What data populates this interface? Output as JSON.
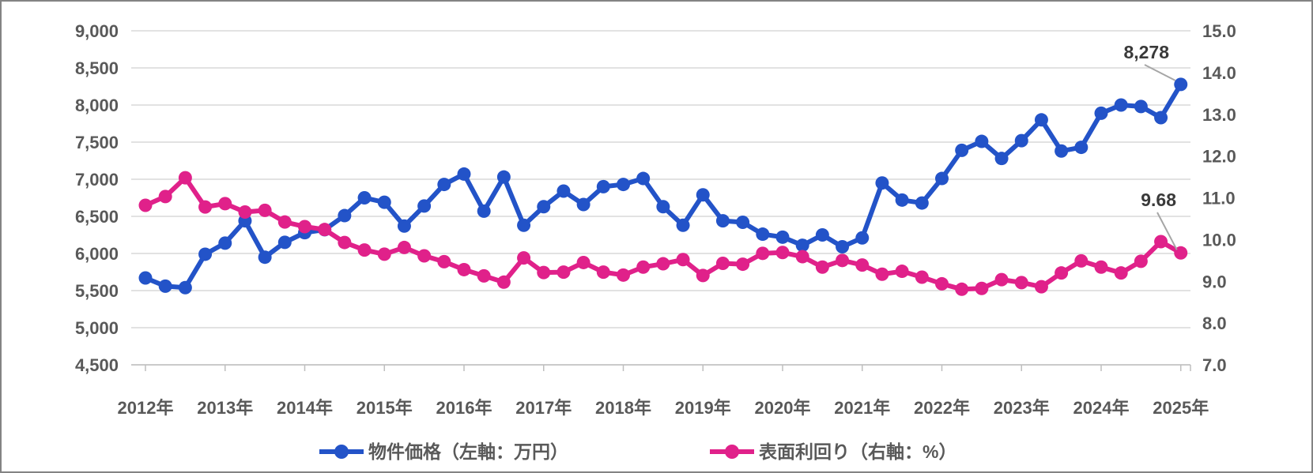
{
  "chart_data": {
    "type": "line",
    "title": "",
    "points_per_year": 4,
    "n_points": 53,
    "x_range_note": "quarterly 2012Q1 - 2025Q1",
    "x_axis_year_labels": [
      "2012年",
      "2013年",
      "2014年",
      "2015年",
      "2016年",
      "2017年",
      "2018年",
      "2019年",
      "2020年",
      "2021年",
      "2022年",
      "2023年",
      "2024年",
      "2025年"
    ],
    "series": [
      {
        "name": "物件価格（左軸：万円）",
        "axis": "left",
        "color": "#2353c8",
        "marker": "circle",
        "values": [
          5670,
          5560,
          5540,
          5990,
          6140,
          6440,
          5950,
          6150,
          6280,
          6320,
          6510,
          6750,
          6690,
          6370,
          6640,
          6930,
          7070,
          6570,
          7030,
          6380,
          6630,
          6840,
          6660,
          6900,
          6930,
          7010,
          6630,
          6380,
          6790,
          6440,
          6420,
          6260,
          6220,
          6110,
          6250,
          6090,
          6210,
          6950,
          6720,
          6680,
          7010,
          7390,
          7510,
          7280,
          7520,
          7800,
          7380,
          7430,
          7890,
          8000,
          7980,
          7830,
          8278
        ]
      },
      {
        "name": "表面利回り（右軸：%）",
        "axis": "right",
        "color": "#e0218a",
        "marker": "circle",
        "values": [
          10.82,
          11.03,
          11.48,
          10.78,
          10.86,
          10.66,
          10.7,
          10.42,
          10.31,
          10.24,
          9.93,
          9.75,
          9.65,
          9.81,
          9.61,
          9.47,
          9.28,
          9.13,
          8.98,
          9.56,
          9.21,
          9.22,
          9.45,
          9.22,
          9.15,
          9.34,
          9.42,
          9.52,
          9.14,
          9.43,
          9.41,
          9.67,
          9.69,
          9.59,
          9.34,
          9.5,
          9.39,
          9.17,
          9.24,
          9.1,
          8.94,
          8.81,
          8.83,
          9.04,
          8.97,
          8.87,
          9.2,
          9.49,
          9.34,
          9.2,
          9.48,
          9.95,
          9.68
        ]
      }
    ],
    "left_axis": {
      "min": 4500,
      "max": 9000,
      "step": 500,
      "tick_labels": [
        "9,000",
        "8,500",
        "8,000",
        "7,500",
        "7,000",
        "6,500",
        "6,000",
        "5,500",
        "5,000",
        "4,500"
      ]
    },
    "right_axis": {
      "min": 7.0,
      "max": 15.0,
      "step": 1.0,
      "tick_labels": [
        "15.0",
        "14.0",
        "13.0",
        "12.0",
        "11.0",
        "10.0",
        "9.0",
        "8.0",
        "7.0"
      ]
    },
    "annotations": [
      {
        "text": "8,278",
        "series": 0,
        "point": 52
      },
      {
        "text": "9.68",
        "series": 1,
        "point": 52
      }
    ],
    "legend_position": "bottom",
    "grid": "horizontal"
  },
  "colors": {
    "grid": "#d9d9d9",
    "axis_line": "#bfbfbf",
    "tick": "#bfbfbf",
    "leader_line": "#a6a6a6",
    "axis_text": "#595959",
    "annotation_text": "#3a3a3a",
    "frame_border": "#848484",
    "background": "#ffffff"
  }
}
